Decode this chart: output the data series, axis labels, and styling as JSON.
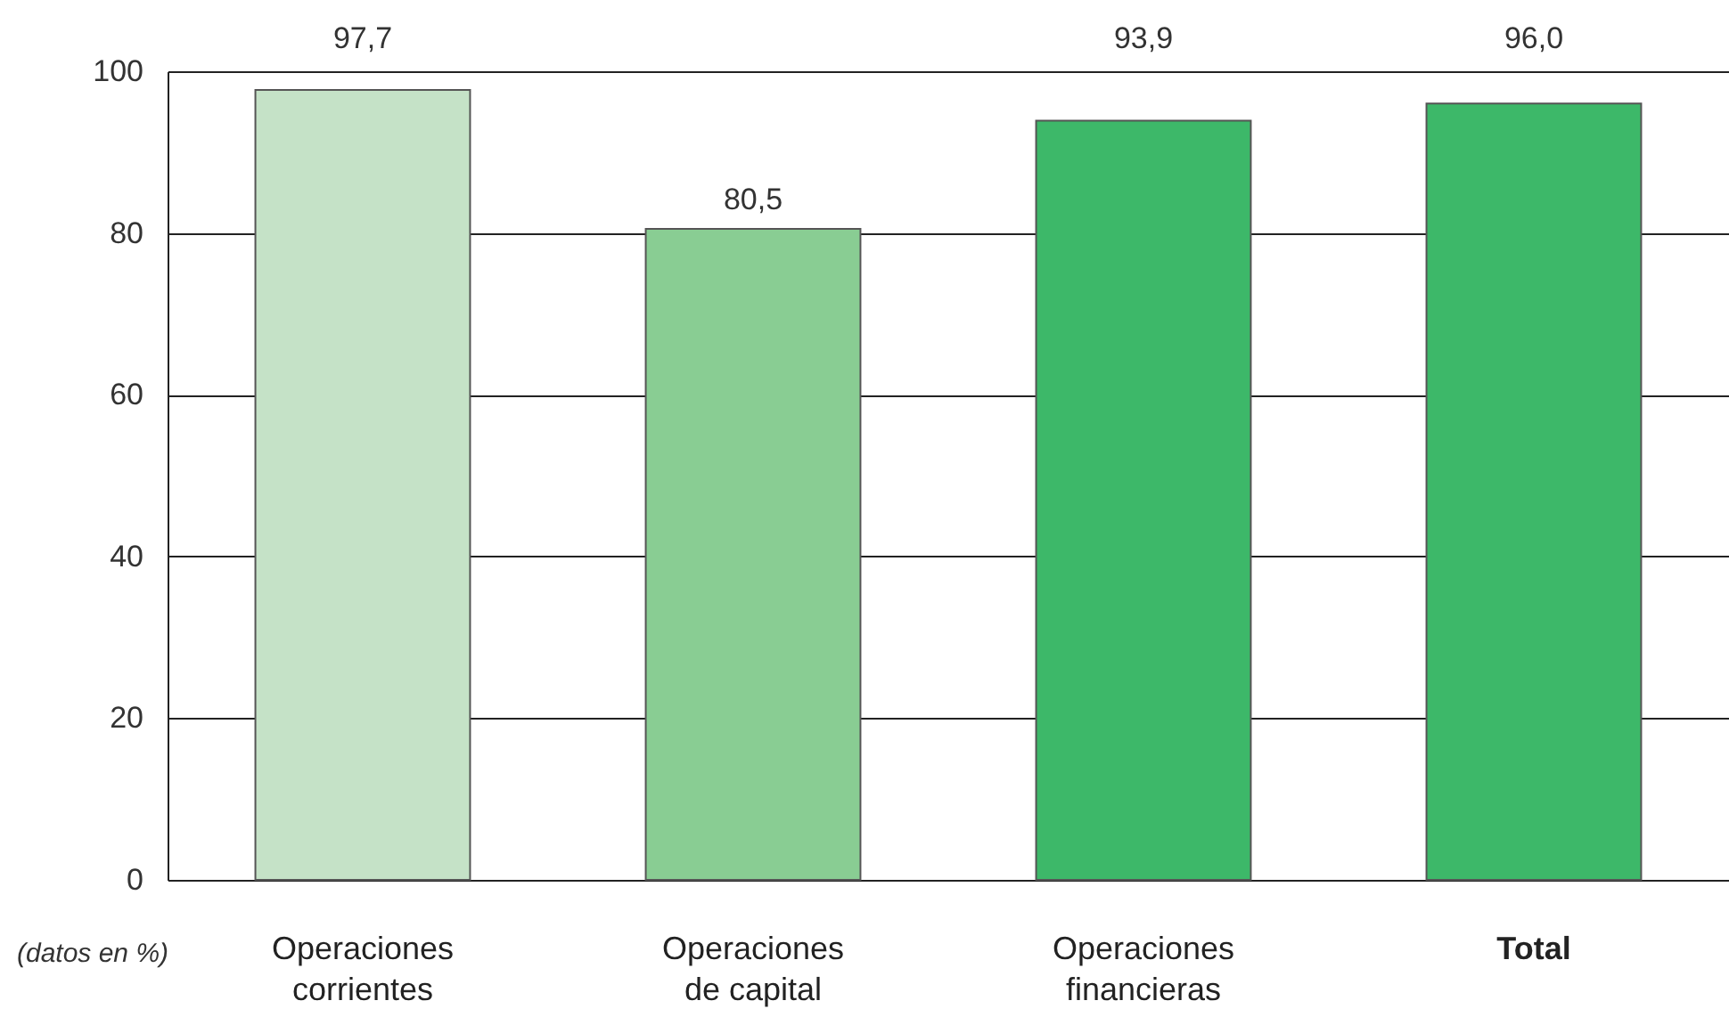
{
  "chart_data": {
    "type": "bar",
    "categories": [
      "Operaciones corrientes",
      "Operaciones de capital",
      "Operaciones financieras",
      "Total"
    ],
    "values": [
      97.7,
      80.5,
      93.9,
      96.0
    ],
    "colors": [
      "#c5e2c7",
      "#89cd93",
      "#3db869",
      "#3db869"
    ],
    "value_labels": [
      "97,7",
      "80,5",
      "93,9",
      "96,0"
    ],
    "ylim": [
      0,
      100
    ],
    "yticks": [
      0,
      20,
      40,
      60,
      80,
      100
    ],
    "grid": "y",
    "annotations": [
      "(datos en %)"
    ]
  }
}
